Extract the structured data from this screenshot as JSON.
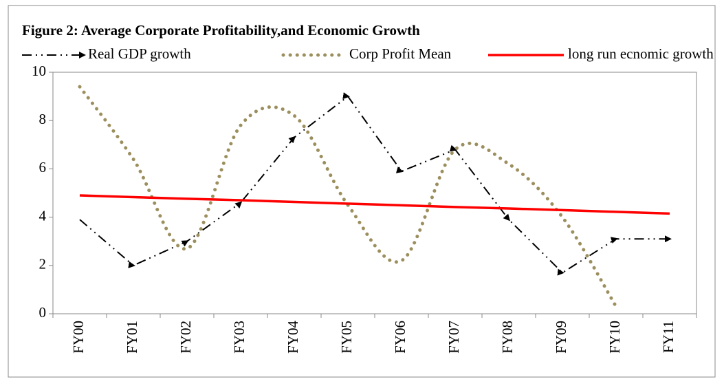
{
  "chart_data": {
    "type": "line",
    "title": "Figure 2: Average Corporate Profitability,and Economic Growth",
    "categories": [
      "FY00",
      "FY01",
      "FY02",
      "FY03",
      "FY04",
      "FY05",
      "FY06",
      "FY07",
      "FY08",
      "FY09",
      "FY10",
      "FY11"
    ],
    "series": [
      {
        "name": "Real GDP growth",
        "color": "#000000",
        "style": "dashdot-arrow",
        "values": [
          3.9,
          2.0,
          3.0,
          4.6,
          7.3,
          9.0,
          5.9,
          6.8,
          3.9,
          1.7,
          3.1,
          3.1
        ]
      },
      {
        "name": "Corp Profit Mean",
        "color": "#9c8f5e",
        "style": "dotted-smooth",
        "values": [
          9.4,
          6.4,
          2.7,
          7.8,
          8.2,
          4.5,
          2.2,
          6.8,
          6.2,
          4.0,
          0.3,
          null
        ]
      },
      {
        "name": "long run ecnomic growth",
        "color": "#ff0000",
        "style": "solid",
        "values": [
          4.9,
          4.83,
          4.76,
          4.7,
          4.63,
          4.56,
          4.49,
          4.42,
          4.36,
          4.29,
          4.22,
          4.15
        ]
      }
    ],
    "ylim": [
      0,
      10
    ],
    "yticks": [
      0,
      2,
      4,
      6,
      8,
      10
    ],
    "grid": false,
    "legend": "top"
  }
}
